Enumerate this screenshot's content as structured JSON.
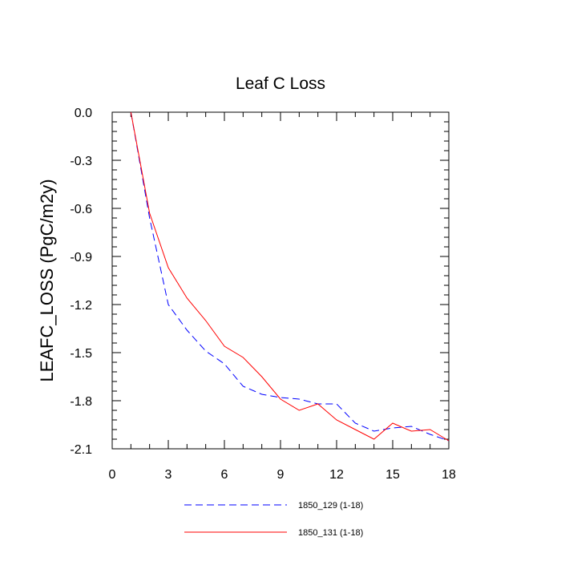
{
  "chart_data": {
    "type": "line",
    "title": "Leaf C Loss",
    "xlabel": "",
    "ylabel": "LEAFC_LOSS  (PgC/m2y)",
    "xlim": [
      0,
      18
    ],
    "ylim": [
      -2.1,
      0.0
    ],
    "xticks": [
      0,
      3,
      6,
      9,
      12,
      15,
      18
    ],
    "xtick_labels": [
      "0",
      "3",
      "6",
      "9",
      "12",
      "15",
      "18"
    ],
    "yticks": [
      0.0,
      -0.3,
      -0.6,
      -0.9,
      -1.2,
      -1.5,
      -1.8,
      -2.1
    ],
    "ytick_labels": [
      "0.0",
      "-0.3",
      "-0.6",
      "-0.9",
      "-1.2",
      "-1.5",
      "-1.8",
      "-2.1"
    ],
    "legend_position": "bottom",
    "series": [
      {
        "name": "1850_129 (1-18)",
        "color": "#0000ff",
        "style": "dashed",
        "x": [
          1,
          2,
          3,
          4,
          5,
          6,
          7,
          8,
          9,
          10,
          11,
          12,
          13,
          14,
          15,
          16,
          17,
          18
        ],
        "values": [
          0.0,
          -0.66,
          -1.2,
          -1.36,
          -1.49,
          -1.57,
          -1.71,
          -1.76,
          -1.78,
          -1.79,
          -1.82,
          -1.82,
          -1.94,
          -1.99,
          -1.97,
          -1.96,
          -2.01,
          -2.05
        ]
      },
      {
        "name": "1850_131 (1-18)",
        "color": "#ff0000",
        "style": "solid",
        "x": [
          1,
          2,
          3,
          4,
          5,
          6,
          7,
          8,
          9,
          10,
          11,
          12,
          13,
          14,
          15,
          16,
          17,
          18
        ],
        "values": [
          0.0,
          -0.63,
          -0.97,
          -1.16,
          -1.3,
          -1.46,
          -1.53,
          -1.65,
          -1.79,
          -1.86,
          -1.82,
          -1.92,
          -1.98,
          -2.04,
          -1.94,
          -1.99,
          -1.98,
          -2.05
        ]
      }
    ]
  }
}
